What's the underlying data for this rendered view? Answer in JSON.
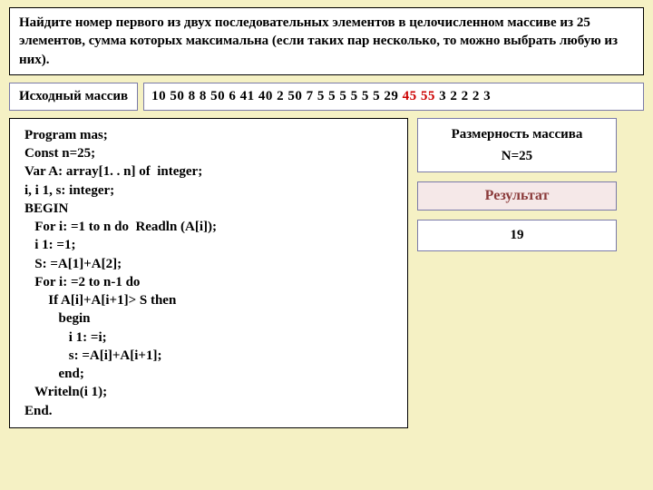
{
  "task": {
    "text": "Найдите номер первого из двух последовательных элементов в целочисленном массиве из 25 элементов, сумма которых максимальна (если таких пар несколько, то можно выбрать любую из них)."
  },
  "source_array": {
    "label": "Исходный массив",
    "values_before": "10 50 8 8 50 6 41 40 2 50 7 5 5 5 5 5 5 29",
    "highlight": "45 55",
    "values_after": "3  2  2   2 3"
  },
  "code": {
    "lines": "Program mas;\nConst n=25;\nVar A: array[1. . n] of  integer;\ni, i 1, s: integer;\nBEGIN\n   For i: =1 to n do  Readln (A[i]);\n   i 1: =1;\n   S: =A[1]+A[2];\n   For i: =2 to n-1 do\n       If A[i]+A[i+1]> S then\n          begin\n             i 1: =i;\n             s: =A[i]+A[i+1];\n          end;\n   Writeln(i 1);\nEnd."
  },
  "dimension": {
    "title": "Размерность массива",
    "value": "N=25"
  },
  "result": {
    "title": "Результат",
    "value": "19"
  },
  "colors": {
    "background": "#f5f1c4",
    "box_border": "#7a7aa8",
    "highlight_text": "#cc0000",
    "result_label_bg": "#f5e8e8",
    "result_label_color": "#8a3a3a"
  }
}
